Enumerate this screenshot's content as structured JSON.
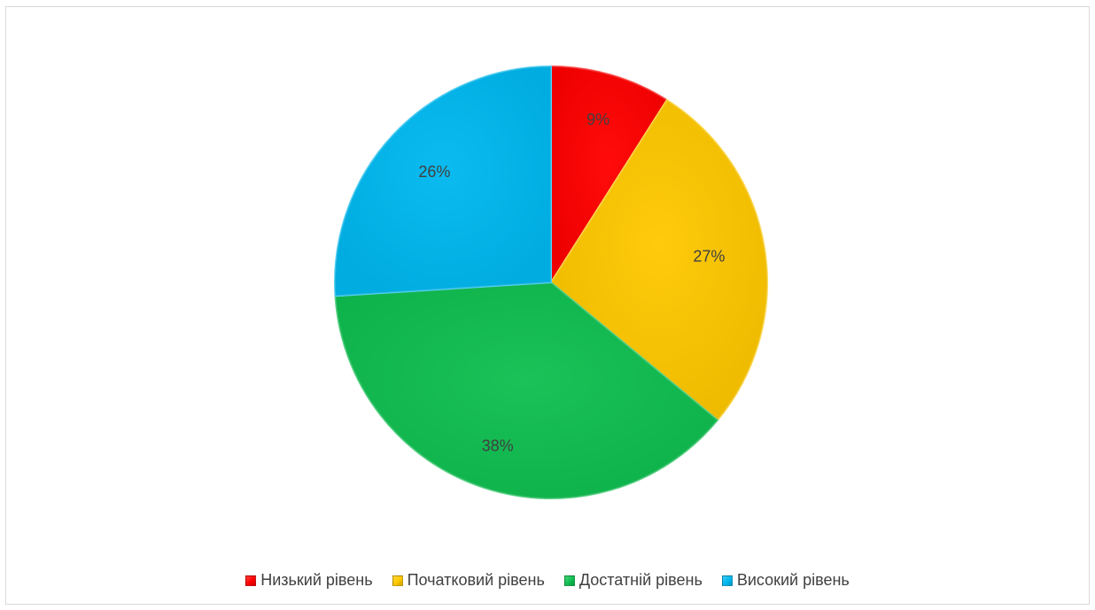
{
  "chart_data": {
    "type": "pie",
    "title": "",
    "categories": [
      "Низький рівень",
      "Початковий рівень",
      "Достатній рівень",
      "Високий рівень"
    ],
    "values": [
      9,
      27,
      38,
      26
    ],
    "labels": [
      "9%",
      "27%",
      "38%",
      "26%"
    ],
    "colors": [
      "#ff0000",
      "#ffc800",
      "#0fbf50",
      "#00b8f0"
    ],
    "legend_position": "bottom"
  }
}
